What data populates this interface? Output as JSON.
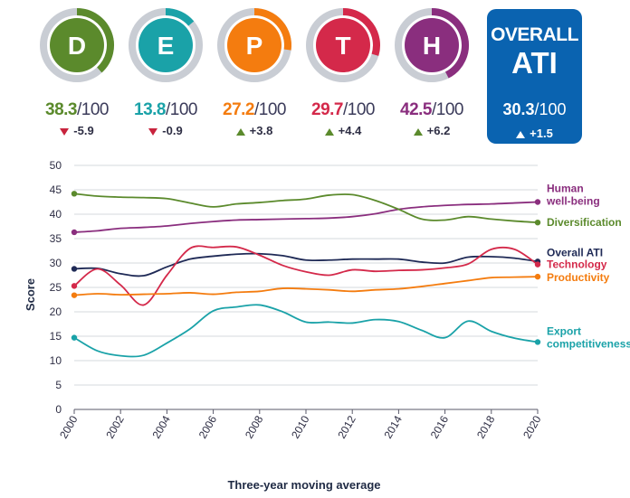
{
  "dimensions": [
    {
      "letter": "D",
      "score": "38.3",
      "denom": "/100",
      "change": "-5.9",
      "direction": "down",
      "color": "#5b8a2c",
      "fraction": 0.383
    },
    {
      "letter": "E",
      "score": "13.8",
      "denom": "/100",
      "change": "-0.9",
      "direction": "down",
      "color": "#1aa2a8",
      "fraction": 0.138
    },
    {
      "letter": "P",
      "score": "27.2",
      "denom": "/100",
      "change": "+3.8",
      "direction": "up",
      "color": "#f47c0f",
      "fraction": 0.272
    },
    {
      "letter": "T",
      "score": "29.7",
      "denom": "/100",
      "change": "+4.4",
      "direction": "up",
      "color": "#d4294a",
      "fraction": 0.297
    },
    {
      "letter": "H",
      "score": "42.5",
      "denom": "/100",
      "change": "+6.2",
      "direction": "up",
      "color": "#8a2e7e",
      "fraction": 0.425
    }
  ],
  "overall": {
    "line1": "OVERALL",
    "line2": "ATI",
    "score": "30.3",
    "denom": "/100",
    "change": "+1.5"
  },
  "colors": {
    "ring_track": "#c9cdd4",
    "overall_bg": "#0a63b0",
    "up": "#5b8a2c",
    "down": "#c8233d"
  },
  "chart_data": {
    "type": "line",
    "xlabel": "Three-year moving average",
    "ylabel": "Score",
    "xlim": [
      2000,
      2020
    ],
    "ylim": [
      0,
      50
    ],
    "xticks": [
      "2000",
      "2002",
      "2004",
      "2006",
      "2008",
      "2010",
      "2012",
      "2014",
      "2016",
      "2018",
      "2020"
    ],
    "yticks": [
      "0",
      "5",
      "10",
      "15",
      "20",
      "25",
      "30",
      "35",
      "40",
      "45",
      "50"
    ],
    "grid": "horizontal",
    "x": [
      2000,
      2001,
      2002,
      2003,
      2004,
      2005,
      2006,
      2007,
      2008,
      2009,
      2010,
      2011,
      2012,
      2013,
      2014,
      2015,
      2016,
      2017,
      2018,
      2019,
      2020
    ],
    "series": [
      {
        "name": "Human well-being",
        "label": "Human well-being",
        "label_lines": [
          "Human",
          "well-being"
        ],
        "color": "#8a2e7e",
        "values": [
          36.3,
          36.6,
          37.1,
          37.3,
          37.6,
          38.1,
          38.5,
          38.8,
          38.9,
          39.0,
          39.1,
          39.2,
          39.5,
          40.1,
          41.0,
          41.5,
          41.8,
          42.0,
          42.1,
          42.3,
          42.5
        ]
      },
      {
        "name": "Diversification",
        "label": "Diversification",
        "label_lines": [
          "Diversification"
        ],
        "color": "#5b8a2c",
        "values": [
          44.2,
          43.7,
          43.5,
          43.4,
          43.2,
          42.3,
          41.5,
          42.1,
          42.4,
          42.8,
          43.1,
          43.9,
          44.0,
          42.8,
          41.0,
          39.0,
          38.8,
          39.5,
          39.0,
          38.6,
          38.3
        ]
      },
      {
        "name": "Overall ATI",
        "label": "Overall ATI",
        "label_lines": [
          "Overall ATI"
        ],
        "color": "#1f2a56",
        "values": [
          28.8,
          28.9,
          27.8,
          27.4,
          29.2,
          30.8,
          31.4,
          31.8,
          31.9,
          31.5,
          30.6,
          30.6,
          30.8,
          30.8,
          30.8,
          30.2,
          30.0,
          31.2,
          31.3,
          31.0,
          30.3
        ]
      },
      {
        "name": "Technology",
        "label": "Technology",
        "label_lines": [
          "Technology"
        ],
        "color": "#d4294a",
        "values": [
          25.3,
          28.8,
          25.5,
          21.4,
          27.5,
          33.0,
          33.2,
          33.3,
          31.6,
          29.5,
          28.2,
          27.5,
          28.6,
          28.3,
          28.5,
          28.6,
          29.0,
          29.8,
          32.8,
          32.8,
          29.7
        ]
      },
      {
        "name": "Productivity",
        "label": "Productivity",
        "label_lines": [
          "Productivity"
        ],
        "color": "#f47c0f",
        "values": [
          23.4,
          23.7,
          23.5,
          23.6,
          23.7,
          23.9,
          23.6,
          24.0,
          24.2,
          24.8,
          24.7,
          24.5,
          24.2,
          24.5,
          24.7,
          25.2,
          25.8,
          26.4,
          27.0,
          27.1,
          27.2
        ]
      },
      {
        "name": "Export competitiveness",
        "label": "Export competitiveness",
        "label_lines": [
          "Export",
          "competitiveness"
        ],
        "color": "#1aa2a8",
        "values": [
          14.7,
          12.0,
          11.0,
          11.1,
          13.6,
          16.5,
          20.2,
          21.0,
          21.4,
          20.0,
          17.9,
          17.9,
          17.7,
          18.4,
          18.0,
          16.2,
          14.7,
          18.1,
          16.0,
          14.6,
          13.8
        ]
      }
    ]
  }
}
